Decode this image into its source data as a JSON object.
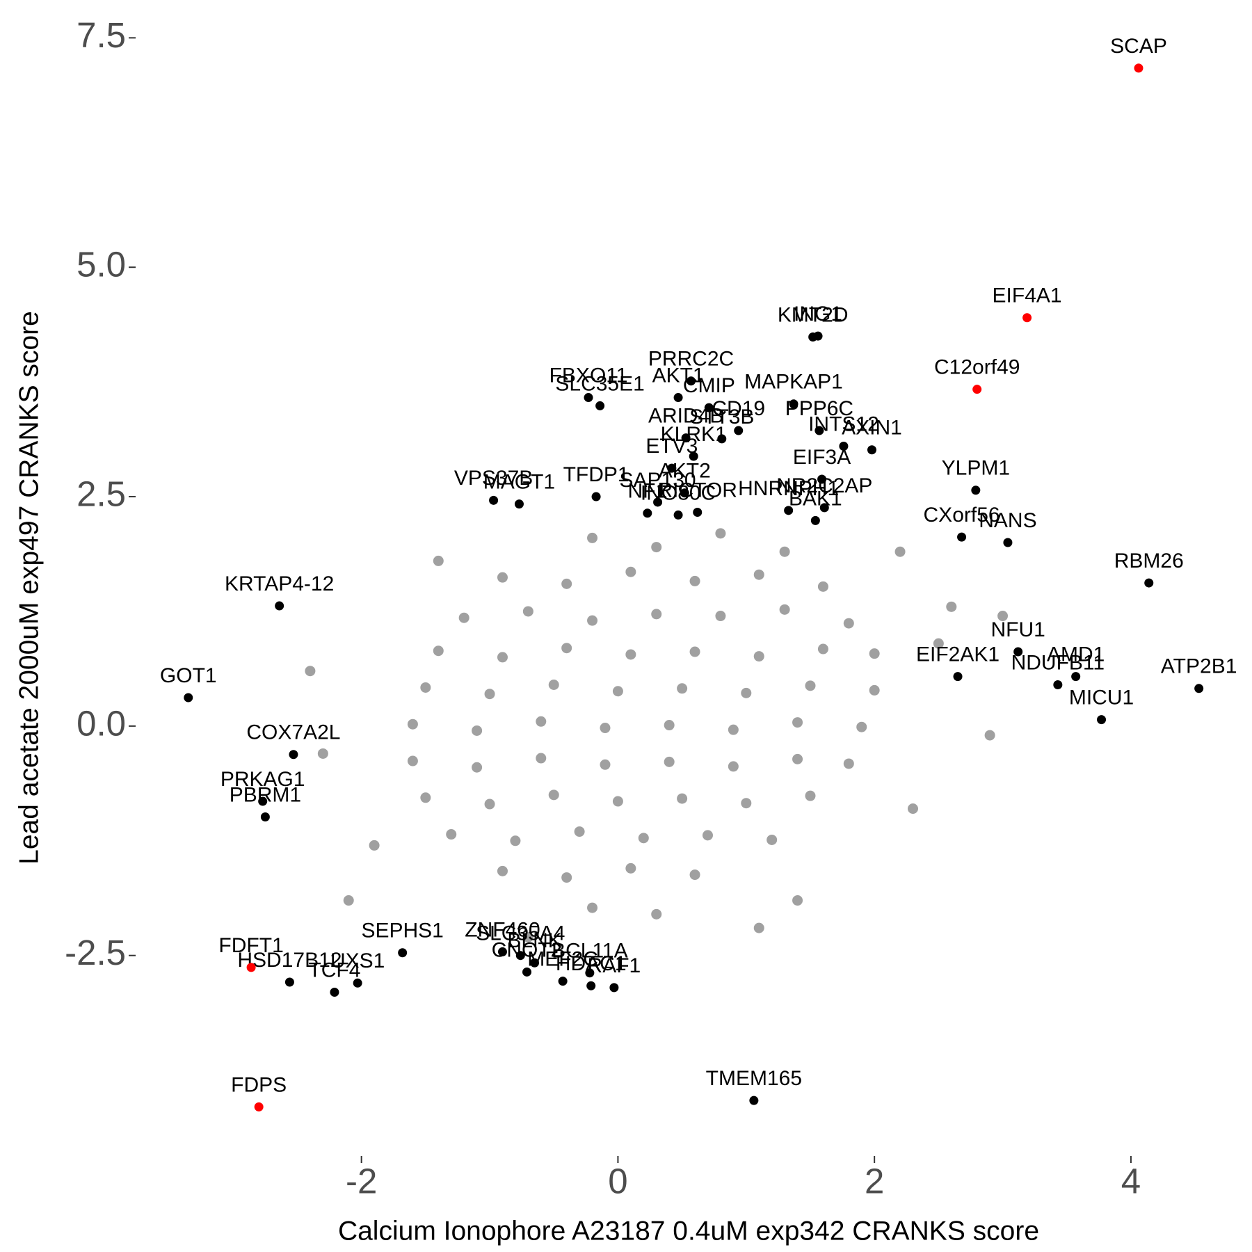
{
  "chart_data": {
    "type": "scatter",
    "x_label": "Calcium Ionophore A23187 0.4uM exp342 CRANKS score",
    "y_label": "Lead acetate 2000uM exp497 CRANKS score",
    "xlim": [
      -3.75,
      4.7
    ],
    "ylim": [
      -4.67,
      7.7
    ],
    "xticks": [
      -2,
      0,
      2,
      4
    ],
    "yticks": [
      -2.5,
      {
        "value": 0,
        "label": "0.0"
      },
      2.5,
      {
        "value": 5,
        "label": "5.0"
      },
      7.5
    ],
    "series": [
      {
        "color": "#a0a0a0",
        "x": [
          -0.2,
          0.3,
          0.8,
          1.3,
          -0.9,
          -0.4,
          0.1,
          0.6,
          1.1,
          1.6,
          -1.2,
          -0.7,
          -0.2,
          0.3,
          0.8,
          1.3,
          1.8,
          -1.4,
          -0.9,
          -0.4,
          0.1,
          0.6,
          1.1,
          1.6,
          2.0,
          -1.5,
          -1.0,
          -0.5,
          0.0,
          0.5,
          1.0,
          1.5,
          2.0,
          -1.6,
          -1.1,
          -0.6,
          -0.1,
          0.4,
          0.9,
          1.4,
          1.9,
          -1.6,
          -1.1,
          -0.6,
          -0.1,
          0.4,
          0.9,
          1.4,
          1.8,
          -1.5,
          -1.0,
          -0.5,
          0.0,
          0.5,
          1.0,
          1.5,
          -1.3,
          -0.8,
          -0.3,
          0.2,
          0.7,
          1.2,
          -0.9,
          -0.4,
          0.1,
          0.6,
          -0.2,
          0.3,
          -2.4,
          -2.3,
          -2.1,
          -1.9,
          2.6,
          2.5,
          2.3,
          1.4,
          2.9,
          -1.4,
          2.2,
          -0.7,
          1.1,
          3.0
        ],
        "y": [
          2.05,
          1.95,
          2.1,
          1.9,
          1.62,
          1.55,
          1.68,
          1.58,
          1.65,
          1.52,
          1.18,
          1.25,
          1.15,
          1.22,
          1.2,
          1.27,
          1.12,
          0.82,
          0.75,
          0.85,
          0.78,
          0.81,
          0.76,
          0.84,
          0.79,
          0.42,
          0.35,
          0.45,
          0.38,
          0.41,
          0.36,
          0.44,
          0.39,
          0.02,
          -0.05,
          0.05,
          -0.02,
          0.01,
          -0.04,
          0.04,
          -0.01,
          -0.38,
          -0.45,
          -0.35,
          -0.42,
          -0.39,
          -0.44,
          -0.36,
          -0.41,
          -0.78,
          -0.85,
          -0.75,
          -0.82,
          -0.79,
          -0.84,
          -0.76,
          -1.18,
          -1.25,
          -1.15,
          -1.22,
          -1.19,
          -1.24,
          -1.58,
          -1.65,
          -1.55,
          -1.62,
          -1.98,
          -2.05,
          0.6,
          -0.3,
          -1.9,
          -1.3,
          1.3,
          0.9,
          -0.9,
          -1.9,
          -0.1,
          1.8,
          1.9,
          -2.3,
          -2.2,
          1.2
        ]
      },
      {
        "color": "#000000",
        "labels": [
          "KMT2D",
          "ING1",
          "PRRC2C",
          "CMIP",
          "STT3B",
          "FBXO11",
          "SLC35E1",
          "AKT1",
          "ARID4B",
          "CD19",
          "MAPKAP1",
          "PPP6C",
          "INTS12",
          "AXIN1",
          "ETV3",
          "TFDP1",
          "MAGT1",
          "VPS37B",
          "AKT2",
          "SAP130",
          "NF1",
          "INO80C",
          "KLRK1",
          "RICTOR",
          "EIF3A",
          "NR2C2AP",
          "HNRNPH1",
          "BAK1",
          "YLPM1",
          "CXorf56",
          "NANS",
          "RBM26",
          "NFU1",
          "AMD1",
          "EIF2AK1",
          "NDUFB11",
          "ATP2B1",
          "MICU1",
          "KRTAP4-12",
          "GOT1",
          "COX7A2L",
          "PRKAG1",
          "PBRM1",
          "SEPHS1",
          "UXS1",
          "HSD17B12",
          "TCF4",
          "SLC35A4",
          "BLNK",
          "ZNF460",
          "CNOT2",
          "HDAC1",
          "BCL11A",
          "RAF1",
          "MEF2C",
          "TMEM165"
        ],
        "x": [
          1.52,
          1.56,
          0.57,
          0.71,
          0.81,
          -0.23,
          -0.14,
          0.47,
          0.53,
          0.94,
          1.37,
          1.57,
          1.76,
          1.98,
          0.42,
          -0.17,
          -0.77,
          -0.97,
          0.52,
          0.31,
          0.23,
          0.47,
          0.59,
          0.62,
          1.59,
          1.61,
          1.33,
          1.54,
          2.79,
          2.68,
          3.04,
          4.14,
          3.12,
          3.57,
          2.65,
          3.43,
          4.53,
          3.77,
          -2.64,
          -3.35,
          -2.53,
          -2.77,
          -2.75,
          -1.68,
          -2.03,
          -2.56,
          -2.21,
          -0.76,
          -0.65,
          -0.9,
          -0.71,
          -0.21,
          -0.22,
          -0.03,
          -0.43,
          1.06
        ],
        "y": [
          4.24,
          4.25,
          3.76,
          3.47,
          3.13,
          3.58,
          3.49,
          3.58,
          3.14,
          3.22,
          3.51,
          3.22,
          3.05,
          3.01,
          2.81,
          2.5,
          2.42,
          2.46,
          2.54,
          2.44,
          2.32,
          2.3,
          2.94,
          2.33,
          2.69,
          2.38,
          2.35,
          2.24,
          2.57,
          2.06,
          2.0,
          1.56,
          0.81,
          0.54,
          0.54,
          0.45,
          0.41,
          0.07,
          1.31,
          0.31,
          -0.31,
          -0.82,
          -0.99,
          -2.47,
          -2.8,
          -2.79,
          -2.9,
          -2.5,
          -2.58,
          -2.46,
          -2.68,
          -2.83,
          -2.69,
          -2.85,
          -2.78,
          -4.08
        ]
      },
      {
        "color": "#ff0000",
        "labels": [
          "SCAP",
          "EIF4A1",
          "C12orf49",
          "FDFT1",
          "FDPS"
        ],
        "x": [
          4.06,
          3.19,
          2.8,
          -2.86,
          -2.8
        ],
        "y": [
          7.17,
          4.45,
          3.67,
          -2.63,
          -4.15
        ]
      }
    ]
  }
}
